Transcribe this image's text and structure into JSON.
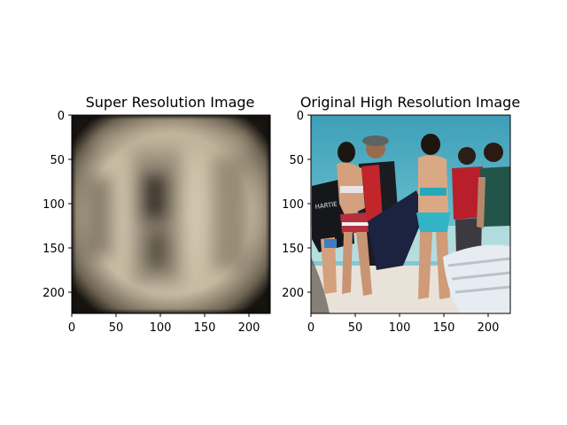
{
  "panels": [
    {
      "title": "Super Resolution Image",
      "xticks": [
        "0",
        "50",
        "100",
        "150",
        "200"
      ],
      "yticks": [
        "0",
        "50",
        "100",
        "150",
        "200"
      ],
      "image": "blurred-reconstruction"
    },
    {
      "title": "Original High Resolution Image",
      "xticks": [
        "0",
        "50",
        "100",
        "150",
        "200"
      ],
      "yticks": [
        "0",
        "50",
        "100",
        "150",
        "200"
      ],
      "image": "beach-crowd-photo"
    }
  ],
  "colors": {
    "sr_base": "#cfc3ad",
    "sr_dark": "#1a1712",
    "sea": "#4aa7bd",
    "sand": "#e9e2d8"
  }
}
